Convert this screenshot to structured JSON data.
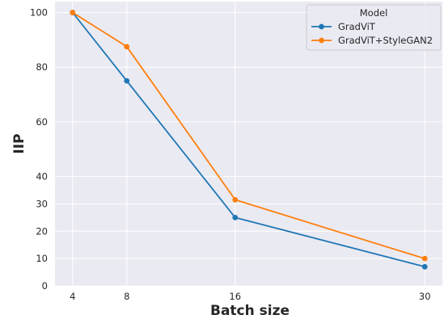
{
  "chart_data": {
    "type": "line",
    "title": "",
    "xlabel": "Batch size",
    "ylabel": "IIP",
    "x": [
      4,
      8,
      16,
      30
    ],
    "x_ticks": [
      "4",
      "8",
      "16",
      "30"
    ],
    "xlim": [
      2.7,
      31.3
    ],
    "y_ticks": [
      "0",
      "10",
      "20",
      "30",
      "40",
      "60",
      "80",
      "100"
    ],
    "y_tick_values": [
      0,
      10,
      20,
      30,
      40,
      60,
      80,
      100
    ],
    "ylim": [
      0,
      104
    ],
    "grid": true,
    "background": "#eaeaf2",
    "legend": {
      "title": "Model",
      "placement": "top-right"
    },
    "series": [
      {
        "name": "GradViT",
        "color": "#1f77b4",
        "values": [
          100,
          75,
          25,
          7
        ]
      },
      {
        "name": "GradViT+StyleGAN2",
        "color": "#ff7f0e",
        "values": [
          100,
          87.5,
          31.5,
          10
        ]
      }
    ]
  }
}
